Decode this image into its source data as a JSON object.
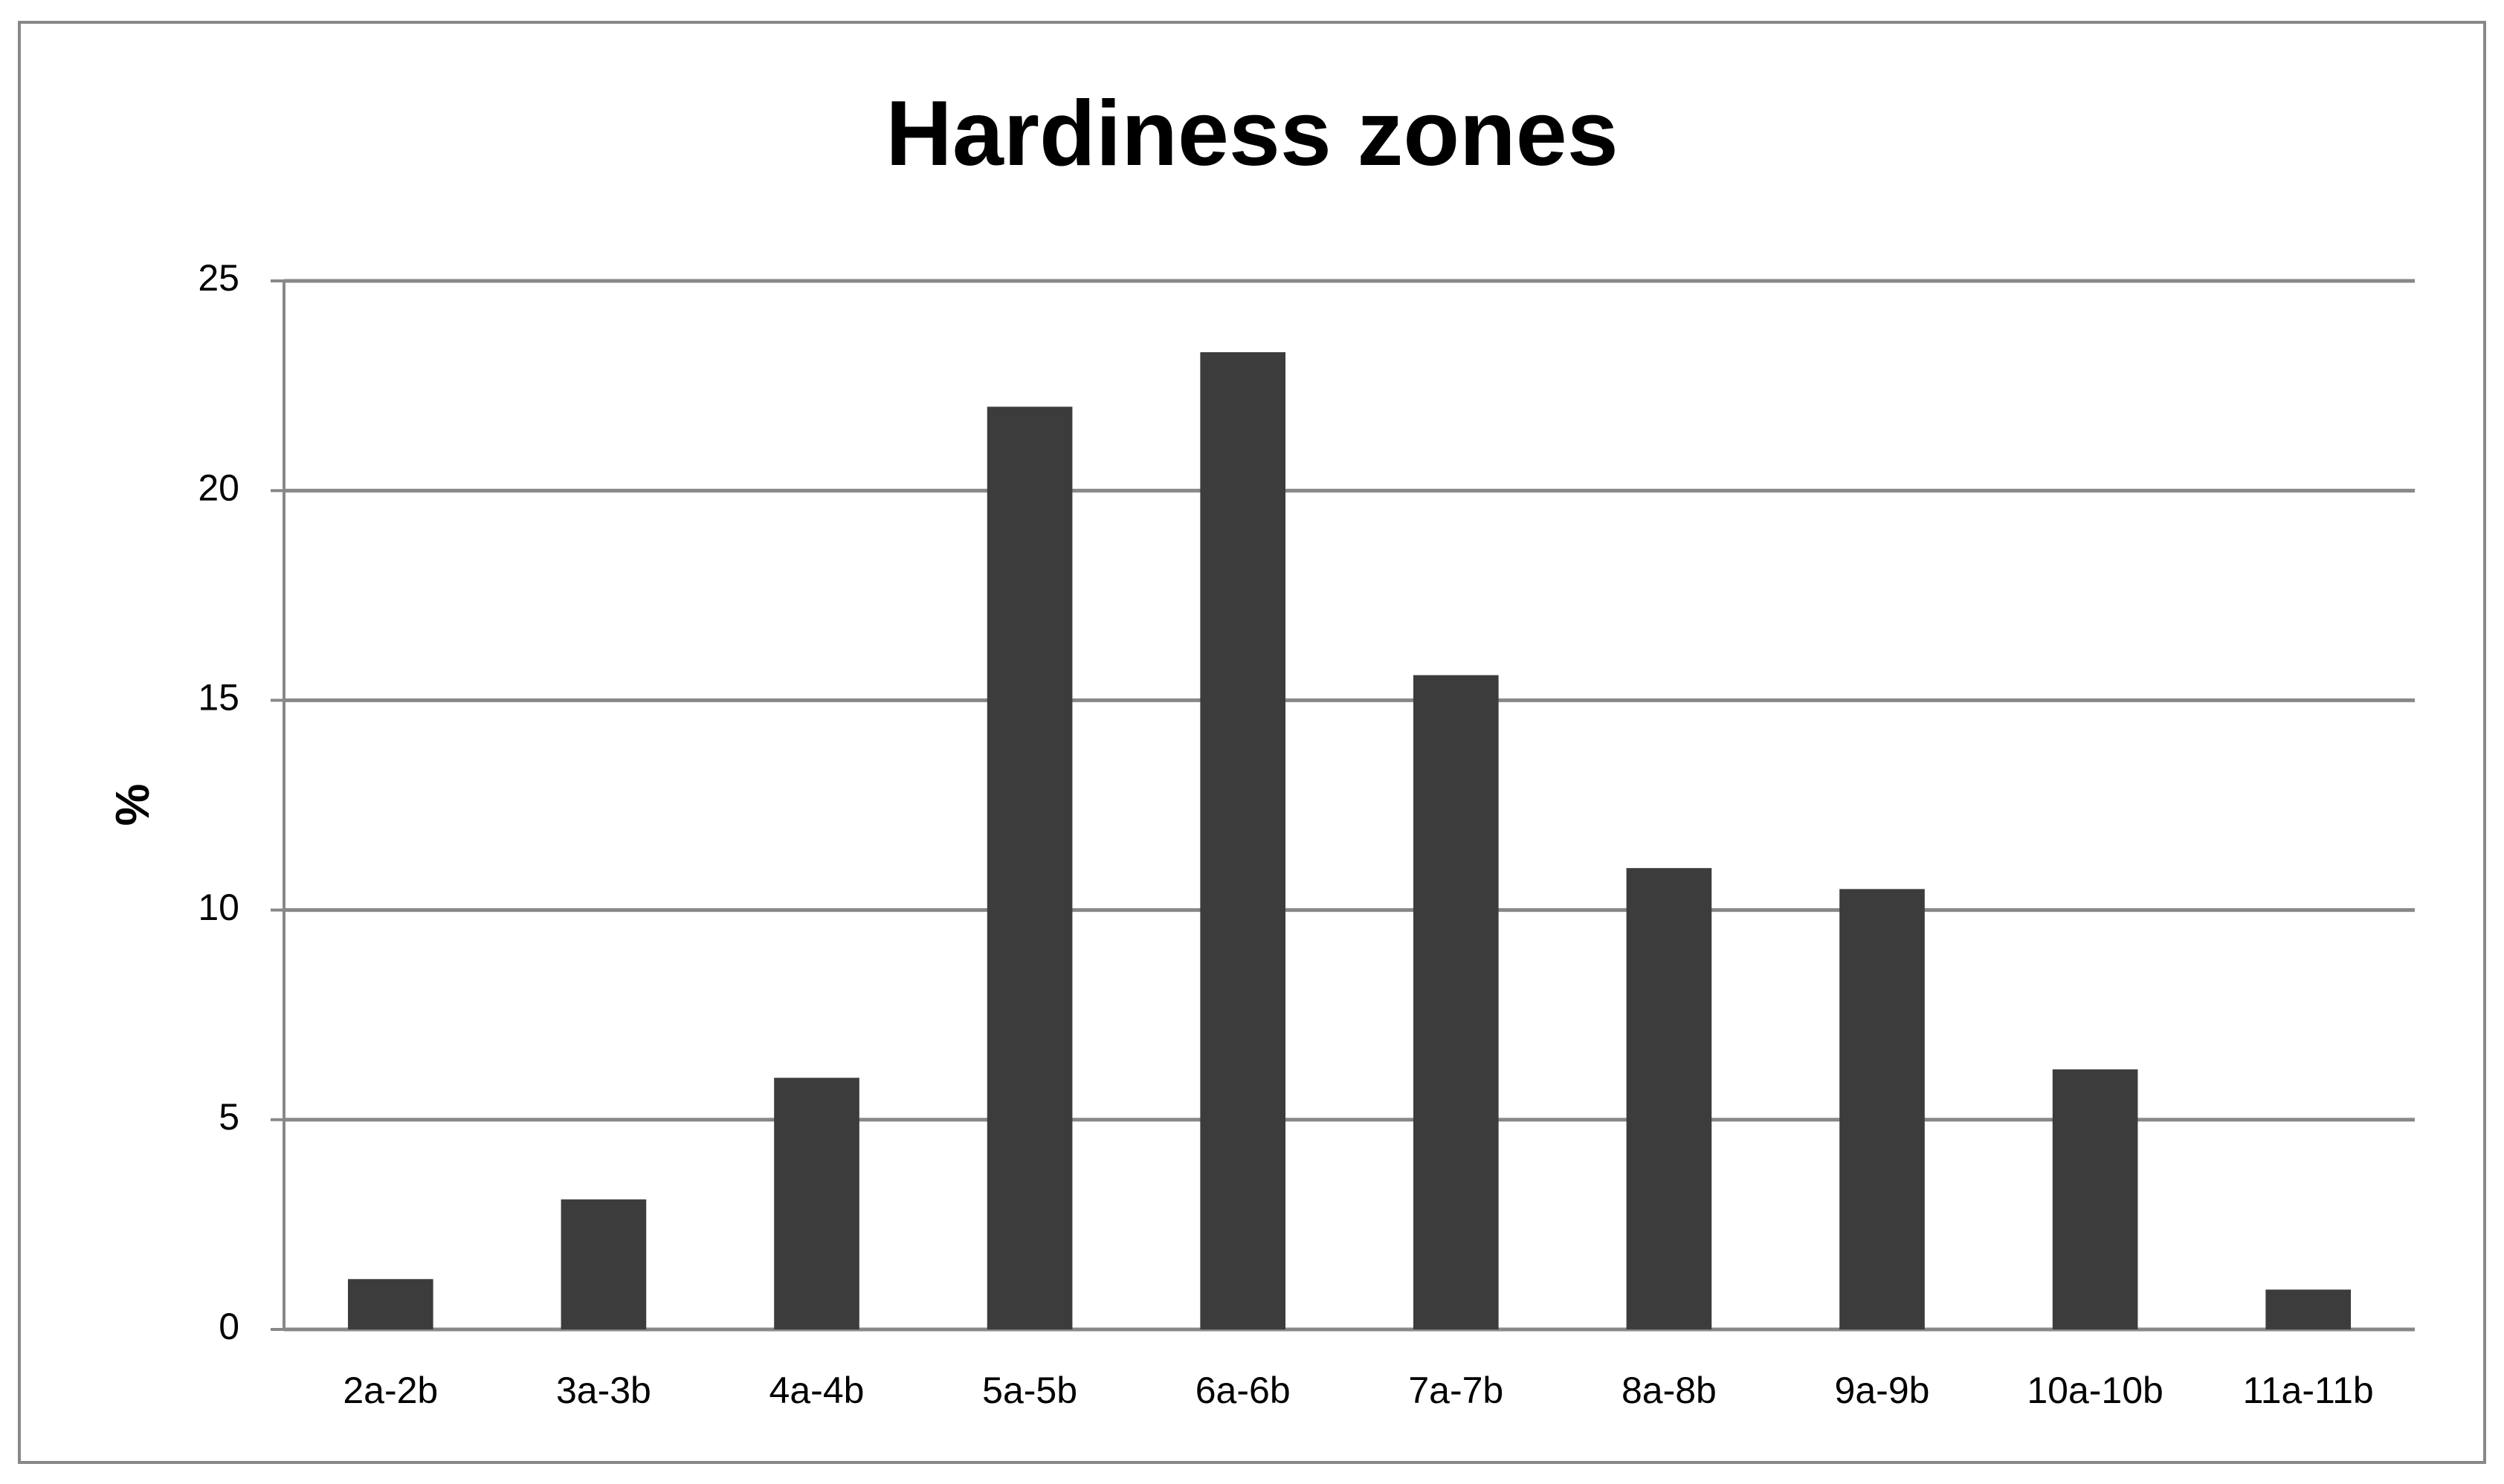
{
  "chart_data": {
    "type": "bar",
    "title": "Hardiness zones",
    "y_label": "%",
    "categories": [
      "2a-2b",
      "3a-3b",
      "4a-4b",
      "5a-5b",
      "6a-6b",
      "7a-7b",
      "8a-8b",
      "9a-9b",
      "10a-10b",
      "11a-11b"
    ],
    "values": [
      1.2,
      3.1,
      6.0,
      22.0,
      23.3,
      15.6,
      11.0,
      10.5,
      6.2,
      0.95
    ],
    "color": "#3c3c3c",
    "ylim": [
      0,
      25
    ],
    "yticks": [
      0,
      5,
      10,
      15,
      20,
      25
    ],
    "grid": true
  }
}
